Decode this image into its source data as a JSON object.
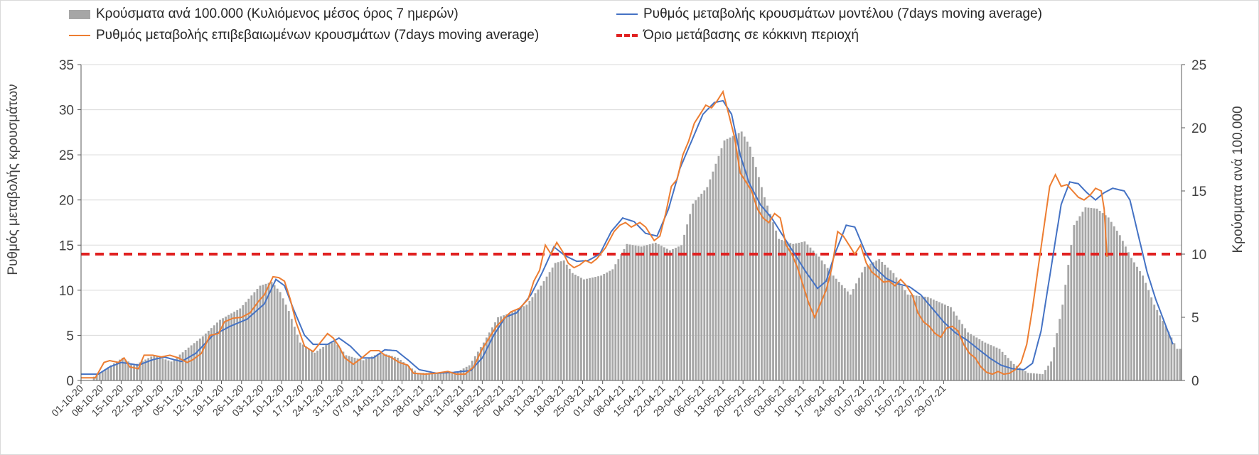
{
  "chart_data": {
    "type": "bar+line",
    "legend": {
      "bars": "Κρούσματα ανά 100.000 (Κυλιόμενος μέσος όρος 7 ημερών)",
      "model": "Ρυθμός μεταβολής κρουσμάτων μοντέλου (7days moving average)",
      "confirmed": "Ρυθμός μεταβολής επιβεβαιωμένων κρουσμάτων (7days moving average)",
      "threshold": "Όριο μετάβασης σε κόκκινη περιοχή"
    },
    "ylabel_left": "Ρυθμός μεταβολής κρουσμάτων",
    "ylabel_right": "Κρούσματα ανά 100.000",
    "ylim_left": [
      0,
      35
    ],
    "ylim_right": [
      0,
      25
    ],
    "yticks_left": [
      "0",
      "5",
      "10",
      "15",
      "20",
      "25",
      "30",
      "35"
    ],
    "yticks_right": [
      "0",
      "5",
      "10",
      "15",
      "20",
      "25"
    ],
    "xticks": [
      "01-10-20",
      "08-10-20",
      "15-10-20",
      "22-10-20",
      "29-10-20",
      "05-11-20",
      "12-11-20",
      "19-11-20",
      "26-11-20",
      "03-12-20",
      "10-12-20",
      "17-12-20",
      "24-12-20",
      "31-12-20",
      "07-01-21",
      "14-01-21",
      "21-01-21",
      "28-01-21",
      "04-02-21",
      "11-02-21",
      "18-02-21",
      "25-02-21",
      "04-03-21",
      "11-03-21",
      "18-03-21",
      "25-03-21",
      "01-04-21",
      "08-04-21",
      "15-04-21",
      "22-04-21",
      "29-04-21",
      "06-05-21",
      "13-05-21",
      "20-05-21",
      "27-05-21",
      "03-06-21",
      "10-06-21",
      "17-06-21",
      "24-06-21",
      "01-07-21",
      "08-07-21",
      "15-07-21",
      "22-07-21",
      "29-07-21"
    ],
    "grid": "horizontal",
    "legend_position": "top",
    "threshold_value": 14,
    "bar_start_day": 4,
    "bars_keypoints": [
      [
        4,
        0.3
      ],
      [
        10,
        1.2
      ],
      [
        14,
        1.8
      ],
      [
        18,
        1.2
      ],
      [
        25,
        2.0
      ],
      [
        31,
        1.5
      ],
      [
        37,
        2.6
      ],
      [
        42,
        3.5
      ],
      [
        48,
        4.8
      ],
      [
        55,
        5.7
      ],
      [
        62,
        7.5
      ],
      [
        66,
        7.8
      ],
      [
        69,
        7.0
      ],
      [
        72,
        5.5
      ],
      [
        76,
        3.0
      ],
      [
        81,
        2.2
      ],
      [
        85,
        2.8
      ],
      [
        88,
        3.1
      ],
      [
        92,
        2.0
      ],
      [
        98,
        1.6
      ],
      [
        104,
        2.2
      ],
      [
        110,
        1.8
      ],
      [
        117,
        0.6
      ],
      [
        124,
        0.6
      ],
      [
        130,
        0.6
      ],
      [
        135,
        1.2
      ],
      [
        140,
        3.0
      ],
      [
        145,
        5.0
      ],
      [
        150,
        5.4
      ],
      [
        155,
        6.0
      ],
      [
        160,
        7.5
      ],
      [
        165,
        9.3
      ],
      [
        168,
        9.5
      ],
      [
        171,
        8.5
      ],
      [
        175,
        8.0
      ],
      [
        181,
        8.3
      ],
      [
        185,
        8.8
      ],
      [
        190,
        10.8
      ],
      [
        195,
        10.6
      ],
      [
        200,
        10.9
      ],
      [
        205,
        10.3
      ],
      [
        209,
        10.7
      ],
      [
        213,
        14.0
      ],
      [
        218,
        15.3
      ],
      [
        224,
        19.0
      ],
      [
        230,
        19.7
      ],
      [
        233,
        18.5
      ],
      [
        238,
        14.5
      ],
      [
        243,
        11.2
      ],
      [
        248,
        10.8
      ],
      [
        252,
        11.0
      ],
      [
        257,
        9.8
      ],
      [
        262,
        8.3
      ],
      [
        268,
        6.8
      ],
      [
        273,
        9.0
      ],
      [
        278,
        9.6
      ],
      [
        283,
        8.5
      ],
      [
        288,
        6.8
      ],
      [
        295,
        6.6
      ],
      [
        303,
        5.8
      ],
      [
        309,
        3.8
      ],
      [
        315,
        3.0
      ],
      [
        320,
        2.5
      ],
      [
        325,
        1.3
      ],
      [
        330,
        0.6
      ],
      [
        335,
        0.5
      ],
      [
        338,
        1.5
      ],
      [
        342,
        6.0
      ],
      [
        346,
        12.3
      ],
      [
        350,
        13.7
      ],
      [
        354,
        13.6
      ],
      [
        358,
        12.9
      ],
      [
        362,
        11.5
      ],
      [
        366,
        9.7
      ],
      [
        370,
        8.3
      ],
      [
        374,
        6.0
      ],
      [
        378,
        4.3
      ],
      [
        382,
        2.5
      ]
    ],
    "model_keypoints": [
      [
        0,
        0.7
      ],
      [
        6,
        0.7
      ],
      [
        10,
        1.5
      ],
      [
        14,
        2.0
      ],
      [
        20,
        1.7
      ],
      [
        25,
        2.3
      ],
      [
        29,
        2.6
      ],
      [
        35,
        2.1
      ],
      [
        40,
        3.0
      ],
      [
        46,
        5.0
      ],
      [
        52,
        6.0
      ],
      [
        58,
        6.8
      ],
      [
        64,
        8.5
      ],
      [
        68,
        11.2
      ],
      [
        71,
        10.5
      ],
      [
        74,
        8.0
      ],
      [
        78,
        5.0
      ],
      [
        81,
        4.0
      ],
      [
        86,
        4.0
      ],
      [
        90,
        4.7
      ],
      [
        94,
        3.8
      ],
      [
        98,
        2.5
      ],
      [
        102,
        2.5
      ],
      [
        106,
        3.4
      ],
      [
        110,
        3.3
      ],
      [
        114,
        2.3
      ],
      [
        118,
        1.2
      ],
      [
        124,
        0.8
      ],
      [
        130,
        0.9
      ],
      [
        136,
        1.1
      ],
      [
        140,
        2.5
      ],
      [
        144,
        5.0
      ],
      [
        148,
        7.0
      ],
      [
        152,
        7.5
      ],
      [
        157,
        9.5
      ],
      [
        161,
        12.0
      ],
      [
        165,
        14.8
      ],
      [
        169,
        13.8
      ],
      [
        173,
        13.2
      ],
      [
        177,
        13.3
      ],
      [
        181,
        14.0
      ],
      [
        185,
        16.5
      ],
      [
        189,
        18.0
      ],
      [
        193,
        17.6
      ],
      [
        197,
        16.3
      ],
      [
        201,
        16.0
      ],
      [
        205,
        19.0
      ],
      [
        209,
        23.5
      ],
      [
        213,
        26.5
      ],
      [
        217,
        29.5
      ],
      [
        221,
        30.8
      ],
      [
        224,
        31.0
      ],
      [
        227,
        29.5
      ],
      [
        230,
        25.0
      ],
      [
        233,
        22.0
      ],
      [
        237,
        19.5
      ],
      [
        241,
        18.0
      ],
      [
        245,
        16.0
      ],
      [
        249,
        14.0
      ],
      [
        253,
        12.0
      ],
      [
        257,
        10.2
      ],
      [
        260,
        11.0
      ],
      [
        263,
        14.0
      ],
      [
        267,
        17.2
      ],
      [
        270,
        17.0
      ],
      [
        274,
        14.0
      ],
      [
        277,
        12.5
      ],
      [
        281,
        11.3
      ],
      [
        285,
        10.7
      ],
      [
        289,
        10.4
      ],
      [
        293,
        9.5
      ],
      [
        297,
        8.0
      ],
      [
        301,
        6.5
      ],
      [
        305,
        5.3
      ],
      [
        309,
        4.5
      ],
      [
        313,
        3.5
      ],
      [
        317,
        2.5
      ],
      [
        321,
        1.7
      ],
      [
        325,
        1.3
      ],
      [
        329,
        1.2
      ],
      [
        332,
        1.9
      ],
      [
        335,
        5.5
      ],
      [
        339,
        13.5
      ],
      [
        342,
        19.5
      ],
      [
        345,
        22.0
      ],
      [
        348,
        21.8
      ],
      [
        351,
        20.8
      ],
      [
        354,
        20.0
      ],
      [
        357,
        20.8
      ],
      [
        360,
        21.3
      ],
      [
        364,
        21.0
      ],
      [
        366,
        20.0
      ],
      [
        369,
        16.0
      ],
      [
        372,
        12.0
      ],
      [
        375,
        9.0
      ],
      [
        378,
        6.5
      ],
      [
        381,
        4.0
      ]
    ],
    "confirmed_keypoints": [
      [
        0,
        0.3
      ],
      [
        5,
        0.3
      ],
      [
        8,
        2.0
      ],
      [
        10,
        2.2
      ],
      [
        13,
        2.0
      ],
      [
        15,
        2.5
      ],
      [
        17,
        1.5
      ],
      [
        20,
        1.3
      ],
      [
        22,
        2.8
      ],
      [
        25,
        2.8
      ],
      [
        28,
        2.6
      ],
      [
        31,
        2.8
      ],
      [
        34,
        2.5
      ],
      [
        37,
        2.0
      ],
      [
        39,
        2.3
      ],
      [
        42,
        3.0
      ],
      [
        45,
        5.0
      ],
      [
        48,
        5.2
      ],
      [
        50,
        6.5
      ],
      [
        53,
        6.9
      ],
      [
        56,
        7.0
      ],
      [
        59,
        7.5
      ],
      [
        62,
        8.8
      ],
      [
        64,
        9.5
      ],
      [
        67,
        11.5
      ],
      [
        69,
        11.4
      ],
      [
        71,
        11.0
      ],
      [
        73,
        9.0
      ],
      [
        75,
        6.5
      ],
      [
        78,
        3.8
      ],
      [
        81,
        3.2
      ],
      [
        83,
        4.0
      ],
      [
        86,
        5.2
      ],
      [
        88,
        4.7
      ],
      [
        90,
        3.8
      ],
      [
        92,
        2.5
      ],
      [
        95,
        1.8
      ],
      [
        98,
        2.5
      ],
      [
        101,
        3.3
      ],
      [
        104,
        3.3
      ],
      [
        106,
        2.8
      ],
      [
        108,
        2.6
      ],
      [
        111,
        2.0
      ],
      [
        114,
        1.7
      ],
      [
        116,
        0.8
      ],
      [
        120,
        0.7
      ],
      [
        124,
        0.8
      ],
      [
        128,
        1.0
      ],
      [
        131,
        0.7
      ],
      [
        134,
        0.7
      ],
      [
        137,
        1.5
      ],
      [
        140,
        3.5
      ],
      [
        142,
        4.5
      ],
      [
        145,
        6.0
      ],
      [
        148,
        7.0
      ],
      [
        150,
        7.6
      ],
      [
        153,
        8.0
      ],
      [
        156,
        9.0
      ],
      [
        158,
        11.0
      ],
      [
        160,
        12.2
      ],
      [
        162,
        15.0
      ],
      [
        164,
        14.0
      ],
      [
        166,
        15.3
      ],
      [
        168,
        14.3
      ],
      [
        170,
        13.0
      ],
      [
        172,
        12.5
      ],
      [
        174,
        12.8
      ],
      [
        176,
        13.3
      ],
      [
        178,
        13.0
      ],
      [
        180,
        13.5
      ],
      [
        183,
        14.7
      ],
      [
        186,
        16.5
      ],
      [
        188,
        17.2
      ],
      [
        190,
        17.5
      ],
      [
        192,
        17.0
      ],
      [
        195,
        17.5
      ],
      [
        197,
        17.0
      ],
      [
        200,
        15.5
      ],
      [
        202,
        16.0
      ],
      [
        204,
        18.5
      ],
      [
        206,
        21.5
      ],
      [
        208,
        22.3
      ],
      [
        210,
        25.0
      ],
      [
        212,
        26.5
      ],
      [
        214,
        28.5
      ],
      [
        216,
        29.5
      ],
      [
        218,
        30.5
      ],
      [
        220,
        30.2
      ],
      [
        222,
        31.0
      ],
      [
        224,
        32.0
      ],
      [
        226,
        29.5
      ],
      [
        228,
        27.0
      ],
      [
        230,
        23.0
      ],
      [
        232,
        22.0
      ],
      [
        234,
        21.0
      ],
      [
        236,
        19.0
      ],
      [
        238,
        18.0
      ],
      [
        240,
        17.5
      ],
      [
        242,
        18.5
      ],
      [
        244,
        18.0
      ],
      [
        246,
        15.0
      ],
      [
        248,
        14.0
      ],
      [
        250,
        12.5
      ],
      [
        252,
        10.5
      ],
      [
        254,
        8.5
      ],
      [
        256,
        7.0
      ],
      [
        258,
        8.5
      ],
      [
        260,
        10.0
      ],
      [
        262,
        12.5
      ],
      [
        264,
        16.5
      ],
      [
        266,
        16.0
      ],
      [
        268,
        15.0
      ],
      [
        270,
        14.0
      ],
      [
        272,
        15.0
      ],
      [
        274,
        13.0
      ],
      [
        276,
        12.0
      ],
      [
        278,
        11.5
      ],
      [
        280,
        10.9
      ],
      [
        282,
        11.0
      ],
      [
        284,
        10.5
      ],
      [
        286,
        11.2
      ],
      [
        288,
        10.5
      ],
      [
        290,
        9.5
      ],
      [
        292,
        7.5
      ],
      [
        294,
        6.5
      ],
      [
        296,
        6.0
      ],
      [
        298,
        5.2
      ],
      [
        300,
        4.8
      ],
      [
        302,
        5.8
      ],
      [
        304,
        6.0
      ],
      [
        306,
        5.5
      ],
      [
        308,
        4.0
      ],
      [
        310,
        3.0
      ],
      [
        312,
        2.5
      ],
      [
        314,
        1.5
      ],
      [
        316,
        0.9
      ],
      [
        318,
        0.7
      ],
      [
        320,
        1.0
      ],
      [
        322,
        0.7
      ],
      [
        324,
        0.8
      ],
      [
        326,
        1.2
      ],
      [
        328,
        2.0
      ],
      [
        330,
        4.0
      ],
      [
        332,
        8.0
      ],
      [
        334,
        12.5
      ],
      [
        336,
        17.0
      ],
      [
        338,
        21.5
      ],
      [
        340,
        22.8
      ],
      [
        342,
        21.5
      ],
      [
        344,
        21.7
      ],
      [
        346,
        21.0
      ],
      [
        348,
        20.3
      ],
      [
        350,
        20.0
      ],
      [
        352,
        20.5
      ],
      [
        354,
        21.3
      ],
      [
        356,
        21.0
      ],
      [
        357,
        19.0
      ],
      [
        358,
        13.7
      ]
    ]
  }
}
